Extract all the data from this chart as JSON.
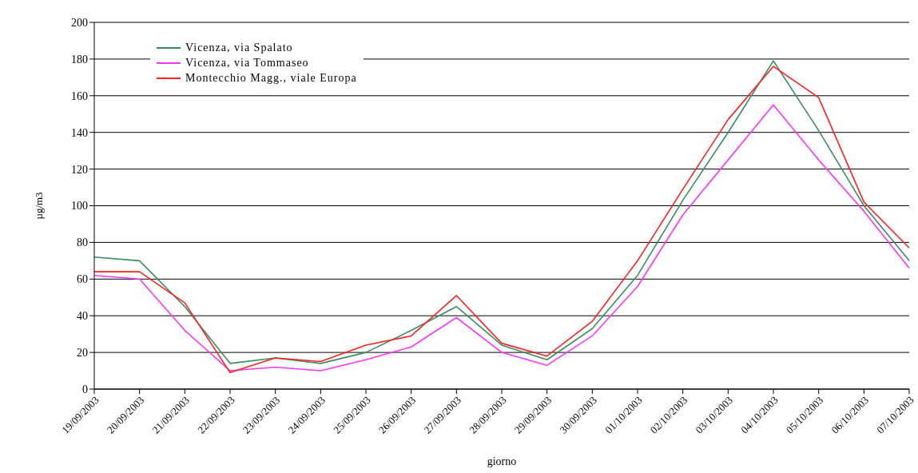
{
  "chart_data": {
    "type": "line",
    "xlabel": "giorno",
    "ylabel": "µg/m3",
    "categories": [
      "19/09/2003",
      "20/09/2003",
      "21/09/2003",
      "22/09/2003",
      "23/09/2003",
      "24/09/2003",
      "25/09/2003",
      "26/09/2003",
      "27/09/2003",
      "28/09/2003",
      "29/09/2003",
      "30/09/2003",
      "01/10/2003",
      "02/10/2003",
      "03/10/2003",
      "04/10/2003",
      "05/10/2003",
      "06/10/2003",
      "07/10/2003"
    ],
    "series": [
      {
        "name": "Vicenza, via Spalato",
        "color": "#3c8c64",
        "values": [
          72,
          70,
          45,
          14,
          17,
          14,
          20,
          32,
          45,
          24,
          16,
          33,
          62,
          103,
          140,
          179,
          141,
          100,
          70
        ]
      },
      {
        "name": "Vicenza, via Tommaseo",
        "color": "#ff33ff",
        "values": [
          62,
          60,
          32,
          10,
          12,
          10,
          16,
          23,
          39,
          20,
          13,
          29,
          56,
          95,
          125,
          155,
          125,
          97,
          66
        ]
      },
      {
        "name": "Montecchio Magg., viale Europa",
        "color": "#ff2020",
        "values": [
          64,
          64,
          47,
          9,
          17,
          15,
          24,
          29,
          51,
          25,
          18,
          37,
          70,
          109,
          147,
          176,
          159,
          102,
          77
        ]
      }
    ],
    "ylim": [
      0,
      200
    ],
    "yticks": [
      0,
      20,
      40,
      60,
      80,
      100,
      120,
      140,
      160,
      180,
      200
    ],
    "grid": "y",
    "legend": "top left",
    "marker": "none",
    "line_style": "solid"
  }
}
